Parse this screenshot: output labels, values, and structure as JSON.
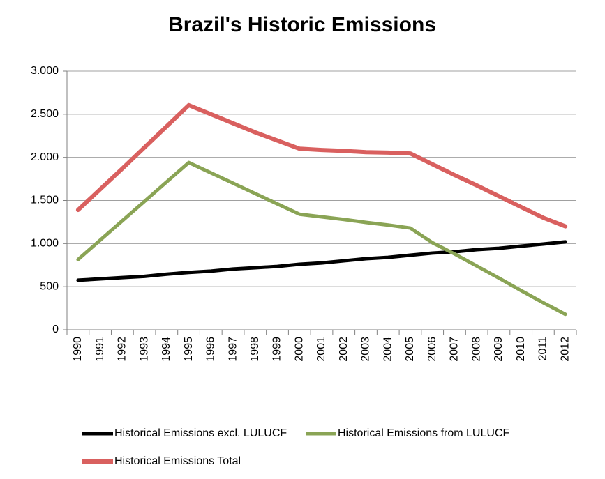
{
  "chart_data": {
    "type": "line",
    "title": "Brazil's Historic Emissions",
    "categories": [
      "1990",
      "1991",
      "1992",
      "1993",
      "1994",
      "1995",
      "1996",
      "1997",
      "1998",
      "1999",
      "2000",
      "2001",
      "2002",
      "2003",
      "2004",
      "2005",
      "2006",
      "2007",
      "2008",
      "2009",
      "2010",
      "2011",
      "2012"
    ],
    "series": [
      {
        "name": "Historical Emissions excl. LULUCF",
        "color": "#000000",
        "values": [
          575,
          590,
          605,
          620,
          645,
          665,
          680,
          705,
          720,
          735,
          760,
          775,
          800,
          825,
          840,
          865,
          890,
          905,
          930,
          945,
          970,
          995,
          1020
        ]
      },
      {
        "name": "Historical Emissions from LULUCF",
        "color": "#8aa455",
        "values": [
          815,
          1040,
          1265,
          1490,
          1715,
          1940,
          1820,
          1700,
          1580,
          1460,
          1340,
          1310,
          1280,
          1245,
          1215,
          1180,
          1010,
          880,
          740,
          600,
          455,
          315,
          180
        ]
      },
      {
        "name": "Historical Emissions Total",
        "color": "#d9605f",
        "values": [
          1390,
          1630,
          1870,
          2115,
          2360,
          2605,
          2500,
          2395,
          2290,
          2195,
          2100,
          2085,
          2075,
          2060,
          2055,
          2045,
          1920,
          1795,
          1675,
          1550,
          1425,
          1300,
          1200
        ]
      }
    ],
    "ylim": [
      0,
      3000
    ],
    "yticks": [
      0,
      500,
      {
        "value": 1000,
        "label": "1.000"
      },
      {
        "value": 1500,
        "label": "1.500"
      },
      {
        "value": 2000,
        "label": "2.000"
      },
      {
        "value": 2500,
        "label": "2.500"
      },
      {
        "value": 3000,
        "label": "3.000"
      }
    ],
    "grid": true,
    "legend": "bottom"
  }
}
